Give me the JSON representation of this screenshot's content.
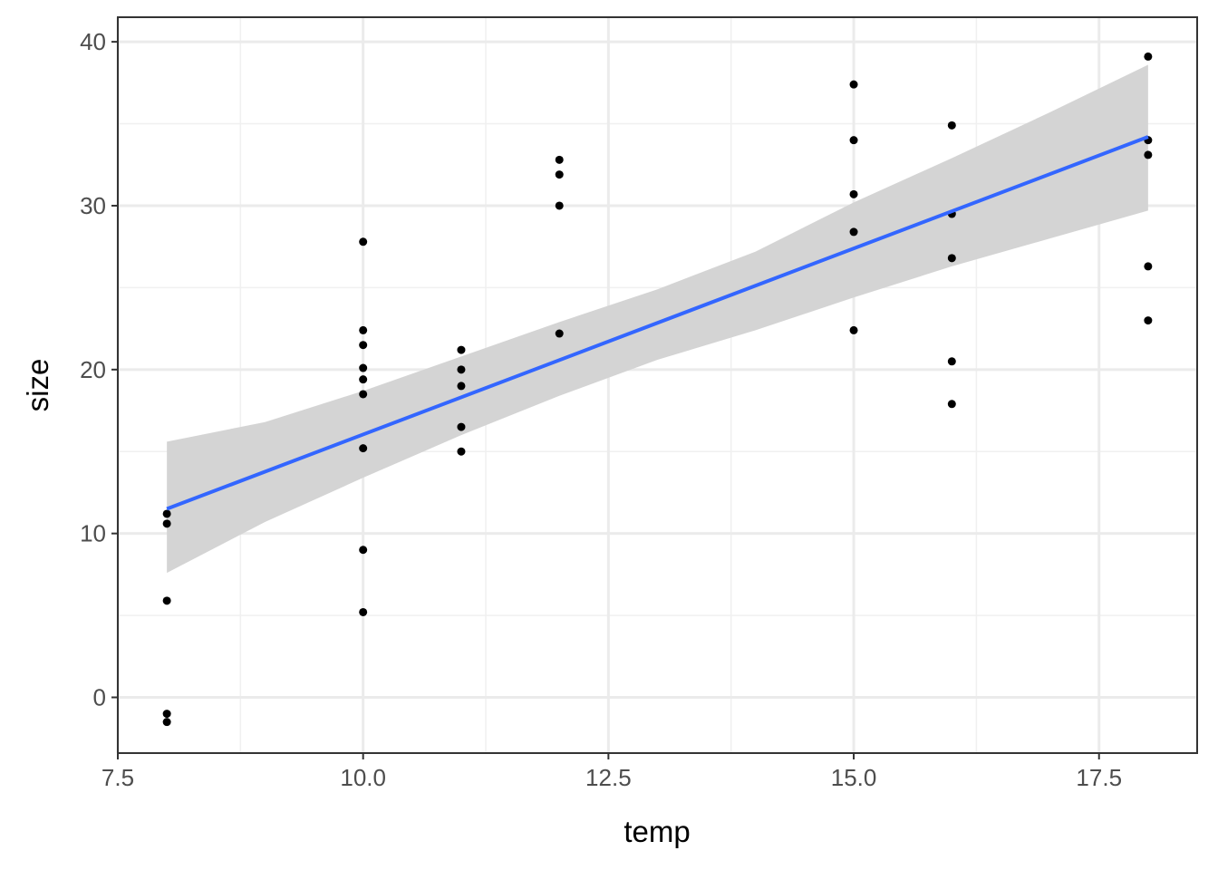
{
  "chart_data": {
    "type": "scatter",
    "xlabel": "temp",
    "ylabel": "size",
    "xlim": [
      7.5,
      18.5
    ],
    "ylim": [
      -3.4,
      41.5
    ],
    "x_ticks": [
      7.5,
      10.0,
      12.5,
      15.0,
      17.5
    ],
    "x_tick_labels": [
      "7.5",
      "10.0",
      "12.5",
      "15.0",
      "17.5"
    ],
    "y_ticks": [
      0,
      10,
      20,
      30,
      40
    ],
    "y_tick_labels": [
      "0",
      "10",
      "20",
      "30",
      "40"
    ],
    "grid": true,
    "points": [
      {
        "x": 8,
        "y": 11.2
      },
      {
        "x": 8,
        "y": 10.6
      },
      {
        "x": 8,
        "y": 5.9
      },
      {
        "x": 8,
        "y": -1.0
      },
      {
        "x": 8,
        "y": -1.5
      },
      {
        "x": 10,
        "y": 27.8
      },
      {
        "x": 10,
        "y": 22.4
      },
      {
        "x": 10,
        "y": 21.5
      },
      {
        "x": 10,
        "y": 20.1
      },
      {
        "x": 10,
        "y": 19.4
      },
      {
        "x": 10,
        "y": 18.5
      },
      {
        "x": 10,
        "y": 15.2
      },
      {
        "x": 10,
        "y": 9.0
      },
      {
        "x": 10,
        "y": 5.2
      },
      {
        "x": 11,
        "y": 21.2
      },
      {
        "x": 11,
        "y": 20.0
      },
      {
        "x": 11,
        "y": 19.0
      },
      {
        "x": 11,
        "y": 16.5
      },
      {
        "x": 11,
        "y": 15.0
      },
      {
        "x": 12,
        "y": 32.8
      },
      {
        "x": 12,
        "y": 31.9
      },
      {
        "x": 12,
        "y": 30.0
      },
      {
        "x": 12,
        "y": 22.2
      },
      {
        "x": 15,
        "y": 37.4
      },
      {
        "x": 15,
        "y": 34.0
      },
      {
        "x": 15,
        "y": 30.7
      },
      {
        "x": 15,
        "y": 28.4
      },
      {
        "x": 15,
        "y": 22.4
      },
      {
        "x": 16,
        "y": 34.9
      },
      {
        "x": 16,
        "y": 29.5
      },
      {
        "x": 16,
        "y": 26.8
      },
      {
        "x": 16,
        "y": 20.5
      },
      {
        "x": 16,
        "y": 17.9
      },
      {
        "x": 18,
        "y": 39.1
      },
      {
        "x": 18,
        "y": 34.0
      },
      {
        "x": 18,
        "y": 33.1
      },
      {
        "x": 18,
        "y": 26.3
      },
      {
        "x": 18,
        "y": 23.0
      }
    ],
    "fit": {
      "method": "lm",
      "color": "#3366FF",
      "line": [
        {
          "x": 8,
          "y": 11.5
        },
        {
          "x": 18,
          "y": 34.2
        }
      ],
      "ci_color": "#d4d4d4",
      "ci": [
        {
          "x": 8,
          "lo": 7.6,
          "hi": 15.6
        },
        {
          "x": 9,
          "lo": 10.7,
          "hi": 16.8
        },
        {
          "x": 10,
          "lo": 13.4,
          "hi": 18.7
        },
        {
          "x": 11,
          "lo": 16.0,
          "hi": 20.8
        },
        {
          "x": 12,
          "lo": 18.4,
          "hi": 22.9
        },
        {
          "x": 13,
          "lo": 20.6,
          "hi": 24.9
        },
        {
          "x": 14,
          "lo": 22.4,
          "hi": 27.2
        },
        {
          "x": 15,
          "lo": 24.4,
          "hi": 30.2
        },
        {
          "x": 16,
          "lo": 26.3,
          "hi": 32.9
        },
        {
          "x": 17,
          "lo": 28.0,
          "hi": 35.7
        },
        {
          "x": 18,
          "lo": 29.7,
          "hi": 38.6
        }
      ]
    }
  }
}
